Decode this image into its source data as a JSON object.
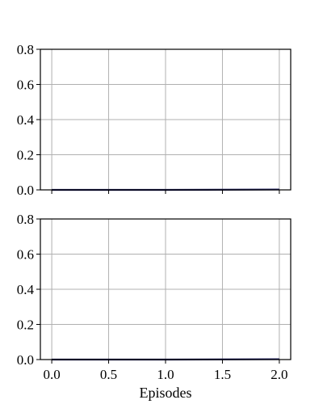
{
  "chart_data": [
    {
      "type": "line",
      "title": "",
      "xlabel": "",
      "ylabel": "",
      "xlim": [
        -0.1,
        2.1
      ],
      "ylim": [
        0,
        0.8
      ],
      "x_ticks": [
        "0.0",
        "0.5",
        "1.0",
        "1.5",
        "2.0"
      ],
      "y_ticks": [
        "0.0",
        "0.2",
        "0.4",
        "0.6",
        "0.8"
      ],
      "grid": true,
      "series": [
        {
          "color": "#1f1f5e",
          "x": [
            0,
            1,
            2
          ],
          "y": [
            0.0,
            0.0,
            0.002
          ]
        }
      ]
    },
    {
      "type": "line",
      "title": "",
      "xlabel": "Episodes",
      "ylabel": "",
      "xlim": [
        -0.1,
        2.1
      ],
      "ylim": [
        0,
        0.8
      ],
      "x_ticks": [
        "0.0",
        "0.5",
        "1.0",
        "1.5",
        "2.0"
      ],
      "y_ticks": [
        "0.0",
        "0.2",
        "0.4",
        "0.6",
        "0.8"
      ],
      "grid": true,
      "series": [
        {
          "color": "#1f1f5e",
          "x": [
            0,
            1,
            2
          ],
          "y": [
            0.0,
            0.0,
            0.002
          ]
        }
      ]
    }
  ]
}
